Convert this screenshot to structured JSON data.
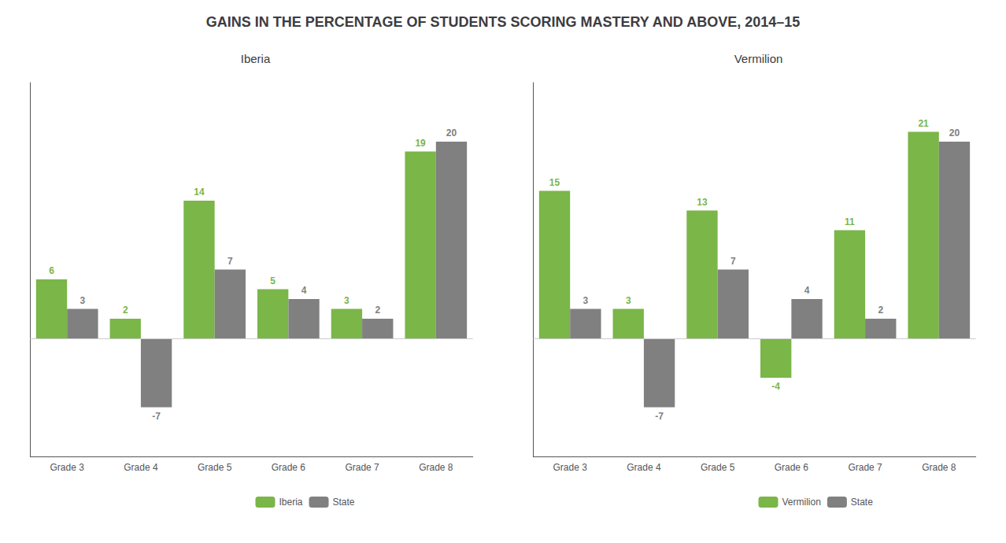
{
  "title": "GAINS IN THE PERCENTAGE OF STUDENTS SCORING MASTERY AND ABOVE, 2014–15",
  "chart_data": [
    {
      "type": "bar",
      "title": "Iberia",
      "categories": [
        "Grade 3",
        "Grade 4",
        "Grade 5",
        "Grade 6",
        "Grade 7",
        "Grade 8"
      ],
      "series": [
        {
          "name": "Iberia",
          "color": "#7ab648",
          "values": [
            6,
            2,
            14,
            5,
            3,
            19
          ]
        },
        {
          "name": "State",
          "color": "#808080",
          "values": [
            3,
            -7,
            7,
            4,
            2,
            20
          ]
        }
      ],
      "ylim": [
        -12,
        26
      ],
      "grid": false,
      "legend": "bottom",
      "data_labels": true,
      "tick_labels": "x"
    },
    {
      "type": "bar",
      "title": "Vermilion",
      "categories": [
        "Grade 3",
        "Grade 4",
        "Grade 5",
        "Grade 6",
        "Grade 7",
        "Grade 8"
      ],
      "series": [
        {
          "name": "Vermilion",
          "color": "#7ab648",
          "values": [
            15,
            3,
            13,
            -4,
            11,
            21
          ]
        },
        {
          "name": "State",
          "color": "#808080",
          "values": [
            3,
            -7,
            7,
            4,
            2,
            20
          ]
        }
      ],
      "ylim": [
        -12,
        26
      ],
      "grid": false,
      "legend": "bottom",
      "data_labels": true,
      "tick_labels": "x"
    }
  ]
}
